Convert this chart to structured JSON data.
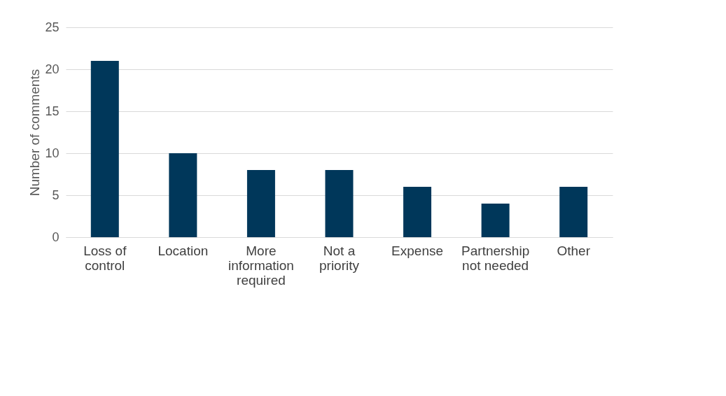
{
  "chart_data": {
    "type": "bar",
    "ylabel": "Number of comments",
    "categories": [
      "Loss of control",
      "Location",
      "More information required",
      "Not a priority",
      "Expense",
      "Partnership not needed",
      "Other"
    ],
    "values": [
      21,
      10,
      8,
      8,
      6,
      4,
      6
    ],
    "color": "#00375a",
    "ylim": [
      0,
      25
    ],
    "yticks": [
      0,
      5,
      10,
      15,
      20,
      25
    ],
    "grid": "y"
  }
}
